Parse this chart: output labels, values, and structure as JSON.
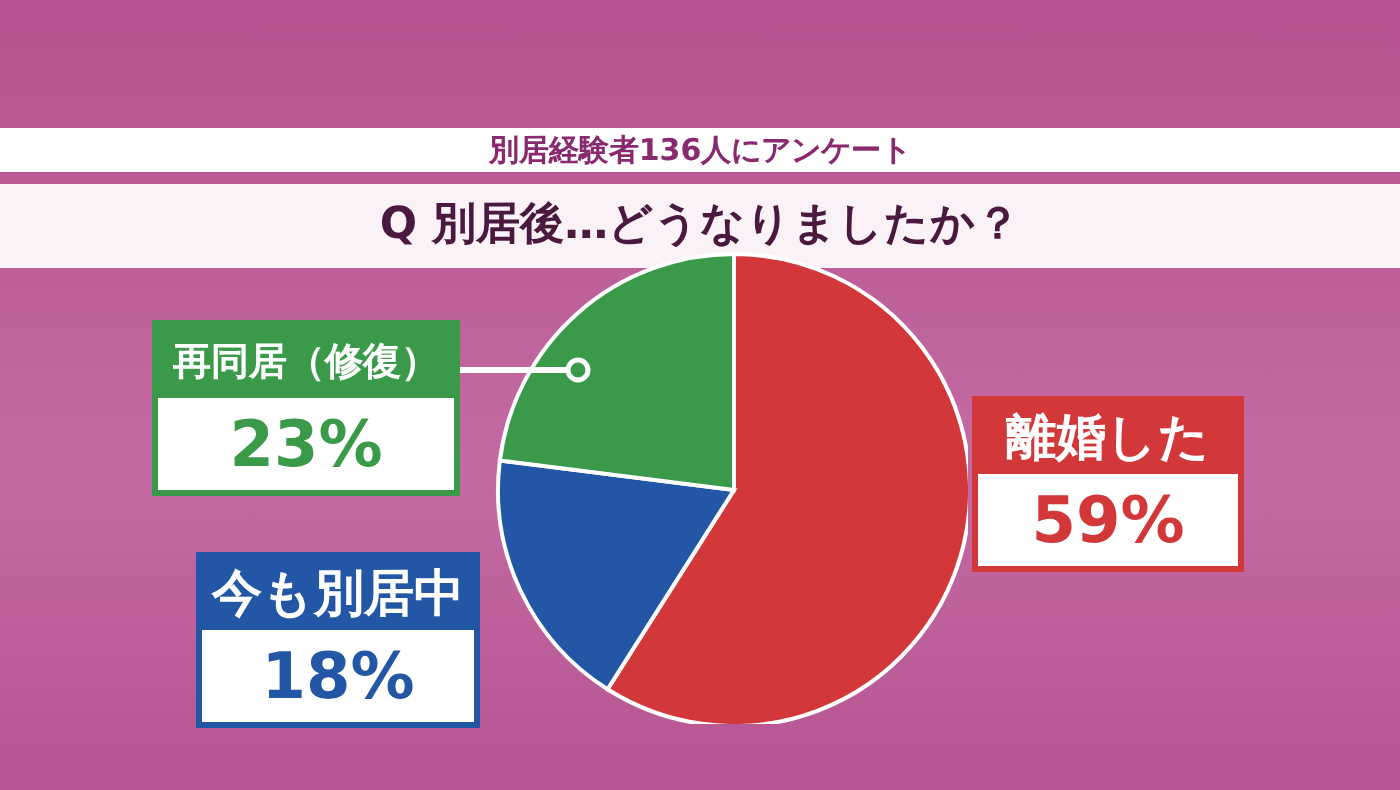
{
  "chart_data": {
    "type": "pie",
    "title": "別居経験者136人にアンケート",
    "subtitle": "Q 別居後…どうなりましたか？",
    "categories": [
      "離婚した",
      "今も別居中",
      "再同居（修復）"
    ],
    "values": [
      59,
      18,
      23
    ],
    "value_labels": [
      "59%",
      "18%",
      "23%"
    ],
    "colors": [
      "#d2373a",
      "#2357a6",
      "#3b9a4a"
    ]
  }
}
